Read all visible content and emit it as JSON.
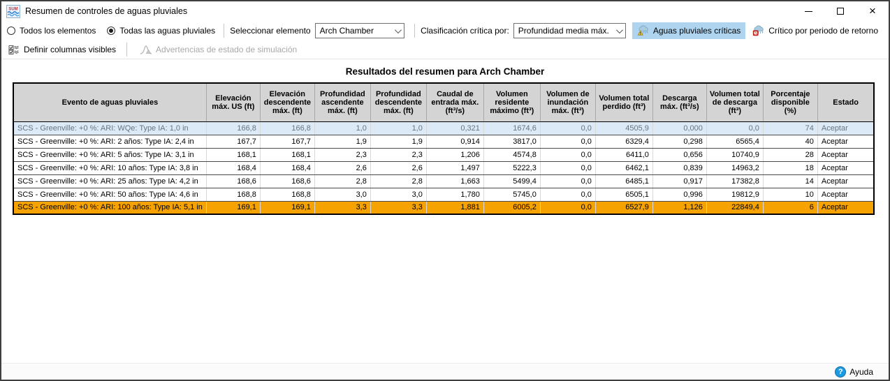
{
  "window": {
    "title": "Resumen de controles de aguas pluviales",
    "close_glyph": "×"
  },
  "toolbar": {
    "radio_options": [
      {
        "label": "Todos los elementos",
        "selected": false
      },
      {
        "label": "Todas las aguas pluviales",
        "selected": true
      }
    ],
    "select_element_label": "Seleccionar elemento",
    "select_element_value": "Arch Chamber",
    "critical_sort_label": "Clasificación crítica por:",
    "critical_sort_value": "Profundidad media máx.",
    "critical_storm_button": {
      "label": "Aguas pluviales críticas",
      "active": true
    },
    "critical_return_button": {
      "label": "Crítico por periodo de retorno",
      "active": false
    }
  },
  "toolbar2": {
    "define_columns_label": "Definir columnas visibles",
    "simulation_warnings_label": "Advertencias de estado de simulación",
    "simulation_warnings_enabled": false
  },
  "main": {
    "table_title": "Resultados del resumen para Arch Chamber",
    "columns": [
      "Evento de aguas pluviales",
      "Elevación máx. US (ft)",
      "Elevación descendente máx. (ft)",
      "Profundidad ascendente máx. (ft)",
      "Profundidad descendente máx. (ft)",
      "Caudal de entrada máx. (ft³/s)",
      "Volumen residente máximo (ft³)",
      "Volumen de inundación máx. (ft³)",
      "Volumen total perdido (ft³)",
      "Descarga máx. (ft³/s)",
      "Volumen total de descarga (ft³)",
      "Porcentaje disponible (%)",
      "Estado"
    ],
    "rows": [
      {
        "event": "SCS - Greenville: +0 %: ARI: WQe: Type IA: 1,0 in",
        "values": [
          "166,8",
          "166,8",
          "1,0",
          "1,0",
          "0,321",
          "1674,6",
          "0,0",
          "4505,9",
          "0,000",
          "0,0",
          "74"
        ],
        "status": "Aceptar",
        "highlight": "selected"
      },
      {
        "event": "SCS - Greenville: +0 %: ARI: 2 años: Type IA: 2,4 in",
        "values": [
          "167,7",
          "167,7",
          "1,9",
          "1,9",
          "0,914",
          "3817,0",
          "0,0",
          "6329,4",
          "0,298",
          "6565,4",
          "40"
        ],
        "status": "Aceptar",
        "highlight": null
      },
      {
        "event": "SCS - Greenville: +0 %: ARI: 5 años: Type IA: 3,1 in",
        "values": [
          "168,1",
          "168,1",
          "2,3",
          "2,3",
          "1,206",
          "4574,8",
          "0,0",
          "6411,0",
          "0,656",
          "10740,9",
          "28"
        ],
        "status": "Aceptar",
        "highlight": null
      },
      {
        "event": "SCS - Greenville: +0 %: ARI: 10 años: Type IA: 3,8 in",
        "values": [
          "168,4",
          "168,4",
          "2,6",
          "2,6",
          "1,497",
          "5222,3",
          "0,0",
          "6462,1",
          "0,839",
          "14963,2",
          "18"
        ],
        "status": "Aceptar",
        "highlight": null
      },
      {
        "event": "SCS - Greenville: +0 %: ARI: 25 años: Type IA: 4,2 in",
        "values": [
          "168,6",
          "168,6",
          "2,8",
          "2,8",
          "1,663",
          "5499,4",
          "0,0",
          "6485,1",
          "0,917",
          "17382,8",
          "14"
        ],
        "status": "Aceptar",
        "highlight": null
      },
      {
        "event": "SCS - Greenville: +0 %: ARI: 50 años: Type IA: 4,6 in",
        "values": [
          "168,8",
          "168,8",
          "3,0",
          "3,0",
          "1,780",
          "5745,0",
          "0,0",
          "6505,1",
          "0,996",
          "19812,9",
          "10"
        ],
        "status": "Aceptar",
        "highlight": null
      },
      {
        "event": "SCS - Greenville: +0 %: ARI: 100 años: Type IA: 5,1 in",
        "values": [
          "169,1",
          "169,1",
          "3,3",
          "3,3",
          "1,881",
          "6005,2",
          "0,0",
          "6527,9",
          "1,126",
          "22849,4",
          "6"
        ],
        "status": "Aceptar",
        "highlight": "critical"
      }
    ]
  },
  "footer": {
    "help_label": "Ayuda"
  },
  "colors": {
    "selected_row_bg": "#DCEAF8",
    "selected_row_text": "#68737E",
    "critical_row_bg": "#F6A200",
    "header_bg": "#D4D4D4",
    "active_button_bg": "#AED4F0",
    "help_icon_blue": "#1E9BE0",
    "warning_yellow": "#FFC800",
    "critical_red": "#E03A2F"
  }
}
